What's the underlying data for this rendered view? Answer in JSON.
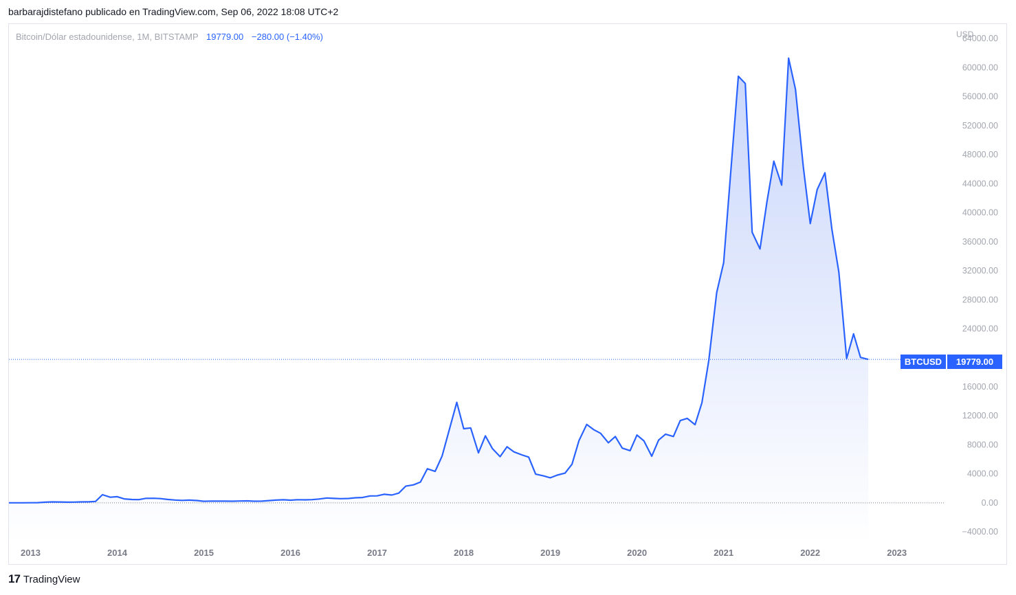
{
  "header": {
    "publish_line": "barbarajdistefano publicado en TradingView.com, Sep 06, 2022 18:08 UTC+2"
  },
  "legend": {
    "symbol": "Bitcoin/Dólar estadounidense, 1M, BITSTAMP",
    "last": "19779.00",
    "change": "−280.00 (−1.40%)"
  },
  "currency": "USD",
  "badge": {
    "ticker": "BTCUSD",
    "value": "19779.00"
  },
  "footer": {
    "logo_mark": "17",
    "brand": "TradingView"
  },
  "colors": {
    "line": "#2962ff",
    "fill_top": "#c9d6fb",
    "fill_bottom": "#ffffff",
    "grid": "#e0e3eb"
  },
  "chart_data": {
    "type": "area",
    "title": "Bitcoin/Dólar estadounidense, 1M, BITSTAMP",
    "ylabel": "USD",
    "xlabel": "",
    "ylim": [
      -5500,
      66000
    ],
    "yticks": [
      64000,
      60000,
      56000,
      52000,
      48000,
      44000,
      40000,
      36000,
      32000,
      28000,
      24000,
      20000,
      16000,
      12000,
      8000,
      4000,
      0,
      -4000
    ],
    "ytick_labels": [
      "64000.00",
      "60000.00",
      "56000.00",
      "52000.00",
      "48000.00",
      "44000.00",
      "40000.00",
      "36000.00",
      "32000.00",
      "28000.00",
      "24000.00",
      "",
      "16000.00",
      "12000.00",
      "8000.00",
      "4000.00",
      "0.00",
      "−4000.00"
    ],
    "xticks": [
      2013,
      2014,
      2015,
      2016,
      2017,
      2018,
      2019,
      2020,
      2021,
      2022,
      2023
    ],
    "xlim": [
      2012.75,
      2023.55
    ],
    "last_price": 19779,
    "zero_line": 0,
    "series": [
      {
        "x": [
          2012.75,
          2012.83,
          2012.92,
          2013.0,
          2013.08,
          2013.17,
          2013.25,
          2013.33,
          2013.42,
          2013.5,
          2013.58,
          2013.67,
          2013.75,
          2013.83,
          2013.92,
          2014.0,
          2014.08,
          2014.17,
          2014.25,
          2014.33,
          2014.42,
          2014.5,
          2014.58,
          2014.67,
          2014.75,
          2014.83,
          2014.92,
          2015.0,
          2015.08,
          2015.17,
          2015.25,
          2015.33,
          2015.42,
          2015.5,
          2015.58,
          2015.67,
          2015.75,
          2015.83,
          2015.92,
          2016.0,
          2016.08,
          2016.17,
          2016.25,
          2016.33,
          2016.42,
          2016.5,
          2016.58,
          2016.67,
          2016.75,
          2016.83,
          2016.92,
          2017.0,
          2017.08,
          2017.17,
          2017.25,
          2017.33,
          2017.42,
          2017.5,
          2017.58,
          2017.67,
          2017.75,
          2017.83,
          2017.92,
          2018.0,
          2018.08,
          2018.17,
          2018.25,
          2018.33,
          2018.42,
          2018.5,
          2018.58,
          2018.67,
          2018.75,
          2018.83,
          2018.92,
          2019.0,
          2019.08,
          2019.17,
          2019.25,
          2019.33,
          2019.42,
          2019.5,
          2019.58,
          2019.67,
          2019.75,
          2019.83,
          2019.92,
          2020.0,
          2020.08,
          2020.17,
          2020.25,
          2020.33,
          2020.42,
          2020.5,
          2020.58,
          2020.67,
          2020.75,
          2020.83,
          2020.92,
          2021.0,
          2021.08,
          2021.17,
          2021.25,
          2021.33,
          2021.42,
          2021.5,
          2021.58,
          2021.67,
          2021.75,
          2021.83,
          2021.92,
          2022.0,
          2022.08,
          2022.17,
          2022.25,
          2022.33,
          2022.42,
          2022.5,
          2022.58,
          2022.67
        ],
        "y": [
          12,
          12,
          13,
          20,
          33,
          93,
          139,
          129,
          97,
          106,
          135,
          141,
          198,
          1130,
          780,
          850,
          550,
          470,
          450,
          630,
          640,
          590,
          480,
          390,
          340,
          380,
          320,
          220,
          250,
          240,
          240,
          230,
          260,
          280,
          230,
          240,
          310,
          380,
          430,
          370,
          440,
          420,
          450,
          530,
          670,
          620,
          580,
          610,
          700,
          740,
          960,
          970,
          1190,
          1080,
          1350,
          2300,
          2480,
          2870,
          4700,
          4340,
          6450,
          9950,
          13860,
          10220,
          10330,
          6900,
          9240,
          7500,
          6380,
          7730,
          7030,
          6620,
          6310,
          3960,
          3720,
          3460,
          3830,
          4100,
          5320,
          8570,
          10810,
          10100,
          9590,
          8290,
          9150,
          7550,
          7200,
          9350,
          8550,
          6430,
          8650,
          9470,
          9150,
          11350,
          11650,
          10780,
          13800,
          19700,
          29000,
          33100,
          45200,
          58800,
          57800,
          37300,
          35000,
          41500,
          47100,
          43800,
          61300,
          57000,
          46300,
          38500,
          43200,
          45500,
          37700,
          31800,
          19900,
          23300,
          20050,
          19779
        ]
      }
    ]
  }
}
